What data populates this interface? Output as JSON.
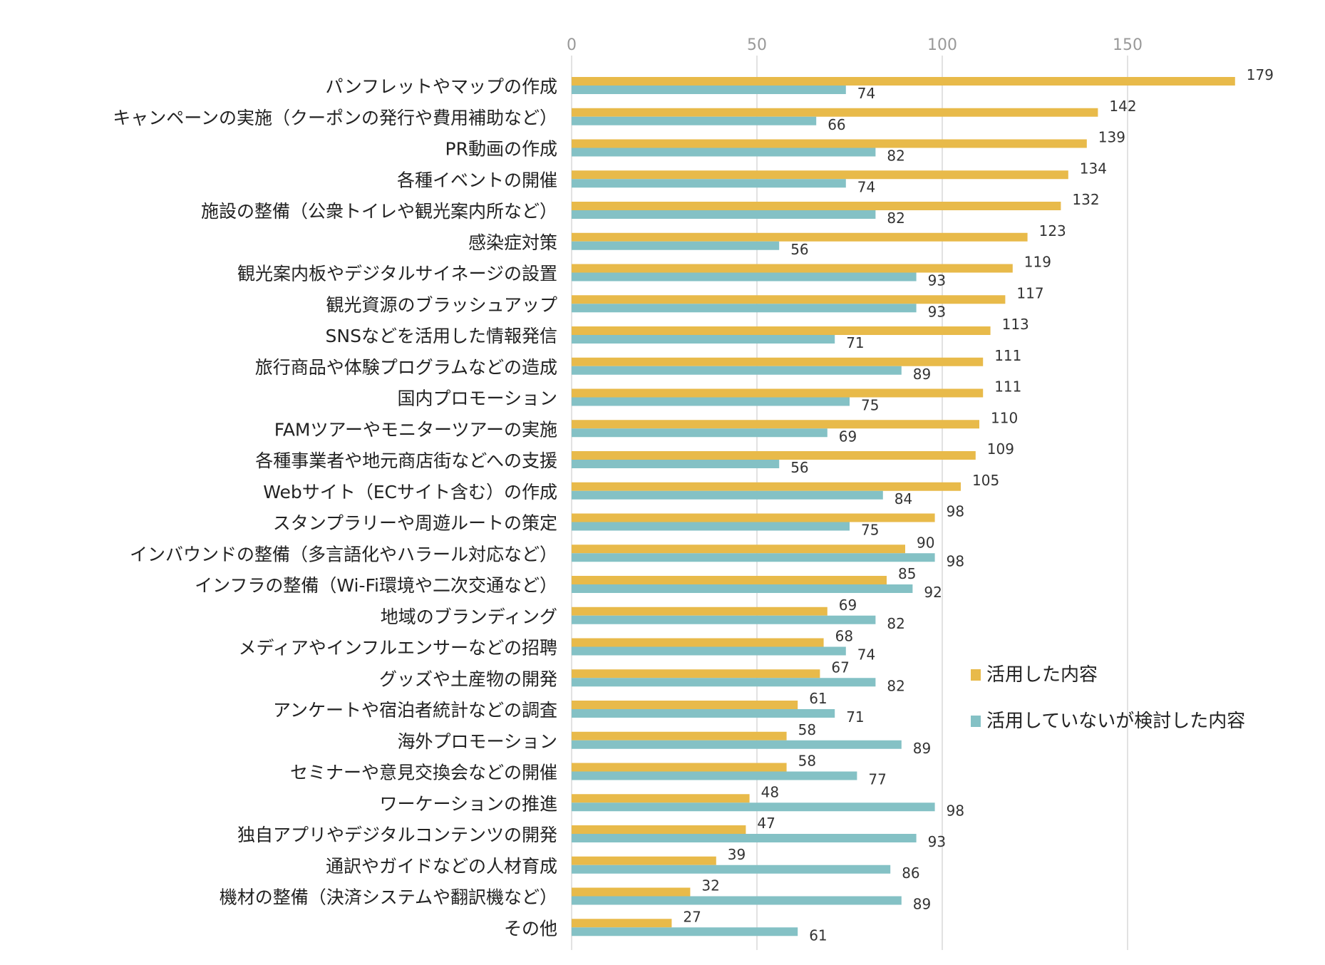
{
  "chart_data": {
    "type": "bar",
    "orientation": "horizontal",
    "categories": [
      "パンフレットやマップの作成",
      "キャンペーンの実施（クーポンの発行や費用補助など）",
      "PR動画の作成",
      "各種イベントの開催",
      "施設の整備（公衆トイレや観光案内所など）",
      "感染症対策",
      "観光案内板やデジタルサイネージの設置",
      "観光資源のブラッシュアップ",
      "SNSなどを活用した情報発信",
      "旅行商品や体験プログラムなどの造成",
      "国内プロモーション",
      "FAMツアーやモニターツアーの実施",
      "各種事業者や地元商店街などへの支援",
      "Webサイト（ECサイト含む）の作成",
      "スタンプラリーや周遊ルートの策定",
      "インバウンドの整備（多言語化やハラール対応など）",
      "インフラの整備（Wi-Fi環境や二次交通など）",
      "地域のブランディング",
      "メディアやインフルエンサーなどの招聘",
      "グッズや土産物の開発",
      "アンケートや宿泊者統計などの調査",
      "海外プロモーション",
      "セミナーや意見交換会などの開催",
      "ワーケーションの推進",
      "独自アプリやデジタルコンテンツの開発",
      "通訳やガイドなどの人材育成",
      "機材の整備（決済システムや翻訳機など）",
      "その他"
    ],
    "series": [
      {
        "name": "活用した内容",
        "color": "#E8BA4A",
        "values": [
          179,
          142,
          139,
          134,
          132,
          123,
          119,
          117,
          113,
          111,
          111,
          110,
          109,
          105,
          98,
          90,
          85,
          69,
          68,
          67,
          61,
          58,
          58,
          48,
          47,
          39,
          32,
          27
        ]
      },
      {
        "name": "活用していないが検討した内容",
        "color": "#84C1C5",
        "values": [
          74,
          66,
          82,
          74,
          82,
          56,
          93,
          93,
          71,
          89,
          75,
          69,
          56,
          84,
          75,
          98,
          92,
          82,
          74,
          82,
          71,
          89,
          77,
          98,
          93,
          86,
          89,
          61
        ]
      }
    ],
    "xticks": [
      "0",
      "50",
      "100",
      "150"
    ],
    "xlim": [
      0,
      200
    ],
    "grid": true,
    "axis_position": "top",
    "data_labels": true,
    "legend_position": "right"
  }
}
